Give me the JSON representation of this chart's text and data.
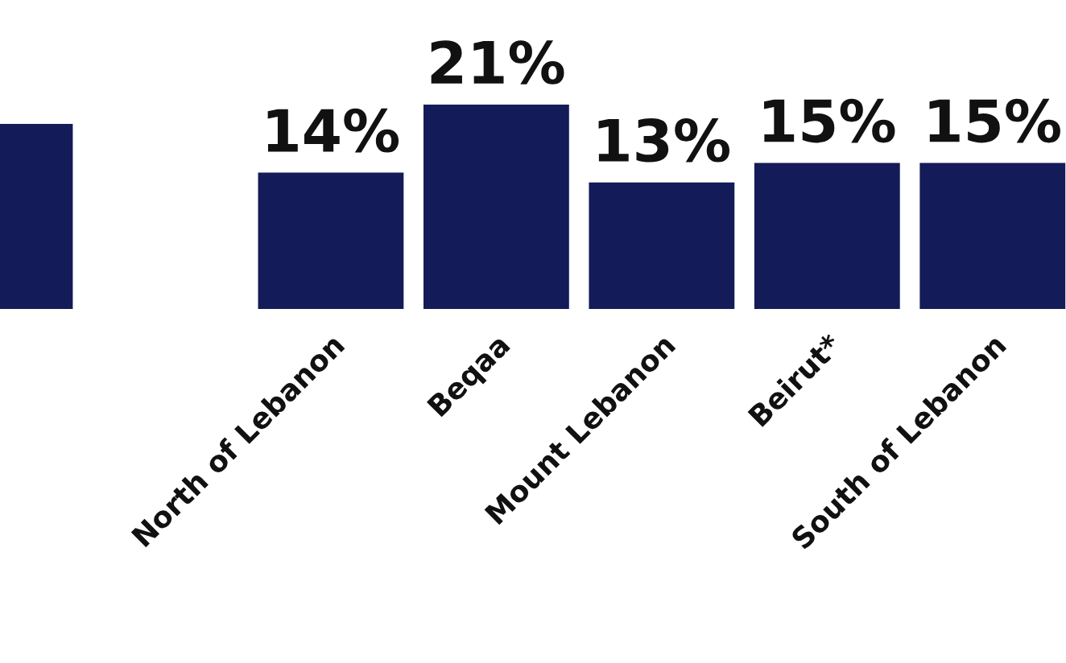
{
  "chart_data": {
    "type": "bar",
    "categories": [
      null,
      null,
      "North of Lebanon",
      "Beqaa",
      "Mount Lebanon",
      "Beirut*",
      "South of Lebanon"
    ],
    "values": [
      19,
      null,
      14,
      21,
      13,
      15,
      15
    ],
    "value_labels": [
      null,
      null,
      "14%",
      "21%",
      "13%",
      "15%",
      "15%"
    ],
    "color": "#131b58",
    "grid": false,
    "legend": false
  }
}
